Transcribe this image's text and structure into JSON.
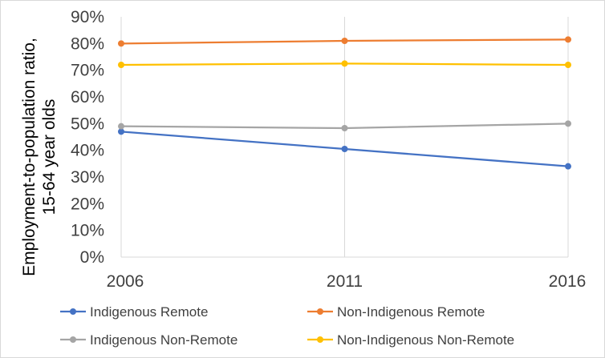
{
  "chart_data": {
    "type": "line",
    "title": "",
    "xlabel": "",
    "ylabel_lines": [
      "Employment-to-population ratio,",
      "15-64 year olds"
    ],
    "x": [
      "2006",
      "2011",
      "2016"
    ],
    "ylim": [
      0,
      90
    ],
    "yticks": [
      0,
      10,
      20,
      30,
      40,
      50,
      60,
      70,
      80,
      90
    ],
    "y_tick_format": "percent",
    "grid": "vertical",
    "legend_position": "bottom",
    "series": [
      {
        "name": "Indigenous Remote",
        "color": "#4472C4",
        "values": [
          47,
          40.5,
          34
        ]
      },
      {
        "name": "Non-Indigenous Remote",
        "color": "#ED7D31",
        "values": [
          80,
          81,
          81.5
        ]
      },
      {
        "name": "Indigenous Non-Remote",
        "color": "#A5A5A5",
        "values": [
          49,
          48.3,
          50
        ]
      },
      {
        "name": "Non-Indigenous Non-Remote",
        "color": "#FFC000",
        "values": [
          72,
          72.5,
          72
        ]
      }
    ]
  }
}
